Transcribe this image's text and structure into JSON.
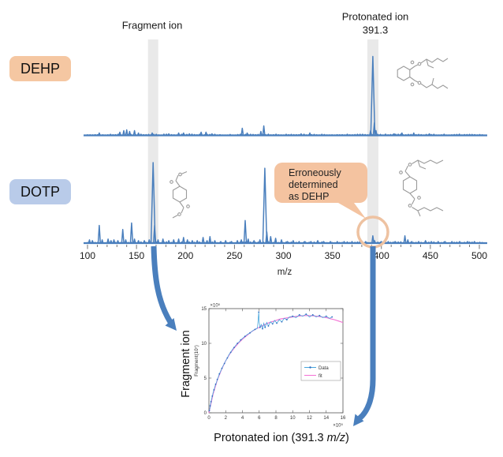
{
  "panel_labels": {
    "dehp": "DEHP",
    "dotp": "DOTP"
  },
  "annotations": {
    "fragment_ion_label": "Fragment ion",
    "protonated_ion_label": "Protonated ion",
    "protonated_ion_mz": "391.3",
    "callout_line1": "Erroneously",
    "callout_line2": "determined",
    "callout_line3": "as DEHP"
  },
  "axis": {
    "label": "m/z",
    "ticks": [
      100,
      150,
      200,
      250,
      300,
      350,
      400,
      450,
      500
    ]
  },
  "inset": {
    "ylabel_outer": "Fragment ion",
    "xlabel_prefix": "Protonated ion (391.3 ",
    "xlabel_italic": "m/z",
    "xlabel_suffix": ")"
  },
  "colors": {
    "spectrum_line": "#4a7fbd",
    "arrow": "#4a7fbd",
    "highlight_band": "#e9e9e9",
    "dehp_box_fill": "#f5c7a2",
    "dotp_box_fill": "#b9cbe9",
    "callout_fill": "#f4c3a0",
    "circle_stroke": "#eec2a1",
    "structure": "#9b9b9b",
    "axis_text": "#1a1a1a"
  },
  "chart_data": [
    {
      "type": "line",
      "name": "DEHP mass spectrum",
      "xlabel": "m/z",
      "xlim": [
        100,
        500
      ],
      "highlighted_mz": [
        167,
        391.3
      ],
      "peaks": [
        [
          112,
          3
        ],
        [
          133,
          4
        ],
        [
          137,
          6
        ],
        [
          140,
          7
        ],
        [
          143,
          5
        ],
        [
          148,
          6
        ],
        [
          152,
          3
        ],
        [
          166,
          3
        ],
        [
          183,
          2
        ],
        [
          193,
          3
        ],
        [
          198,
          3
        ],
        [
          204,
          2
        ],
        [
          216,
          4
        ],
        [
          221,
          4
        ],
        [
          227,
          2
        ],
        [
          258,
          9
        ],
        [
          263,
          3
        ],
        [
          277,
          5
        ],
        [
          280,
          12
        ],
        [
          318,
          2
        ],
        [
          327,
          3
        ],
        [
          389,
          6
        ],
        [
          391.3,
          100
        ],
        [
          392.8,
          16
        ],
        [
          394.5,
          6
        ],
        [
          413,
          2
        ],
        [
          421,
          3
        ],
        [
          433,
          3
        ],
        [
          449,
          2
        ]
      ]
    },
    {
      "type": "line",
      "name": "DOTP mass spectrum",
      "xlabel": "m/z",
      "xlim": [
        100,
        500
      ],
      "highlighted_mz": [
        167,
        391.3
      ],
      "peaks": [
        [
          102,
          4
        ],
        [
          105,
          3
        ],
        [
          112,
          22
        ],
        [
          115,
          4
        ],
        [
          121,
          5
        ],
        [
          124,
          3
        ],
        [
          127,
          4
        ],
        [
          131,
          3
        ],
        [
          136,
          17
        ],
        [
          139,
          4
        ],
        [
          145,
          25
        ],
        [
          148,
          5
        ],
        [
          152,
          3
        ],
        [
          158,
          3
        ],
        [
          163,
          4
        ],
        [
          167,
          100
        ],
        [
          168.5,
          22
        ],
        [
          172,
          4
        ],
        [
          177,
          5
        ],
        [
          183,
          3
        ],
        [
          188,
          4
        ],
        [
          193,
          5
        ],
        [
          198,
          7
        ],
        [
          202,
          4
        ],
        [
          207,
          3
        ],
        [
          212,
          3
        ],
        [
          218,
          7
        ],
        [
          222,
          3
        ],
        [
          225,
          8
        ],
        [
          230,
          3
        ],
        [
          236,
          2
        ],
        [
          241,
          3
        ],
        [
          247,
          2
        ],
        [
          253,
          3
        ],
        [
          257,
          4
        ],
        [
          261,
          28
        ],
        [
          264,
          5
        ],
        [
          270,
          3
        ],
        [
          276,
          4
        ],
        [
          281,
          93
        ],
        [
          283,
          14
        ],
        [
          287,
          8
        ],
        [
          292,
          6
        ],
        [
          298,
          4
        ],
        [
          304,
          2
        ],
        [
          310,
          3
        ],
        [
          316,
          2
        ],
        [
          322,
          2
        ],
        [
          328,
          2
        ],
        [
          335,
          3
        ],
        [
          341,
          2
        ],
        [
          348,
          2
        ],
        [
          355,
          2
        ],
        [
          362,
          2
        ],
        [
          370,
          2
        ],
        [
          378,
          2
        ],
        [
          384,
          2
        ],
        [
          391.3,
          9
        ],
        [
          393,
          3
        ],
        [
          400,
          2
        ],
        [
          407,
          2
        ],
        [
          414,
          2
        ],
        [
          424,
          9
        ],
        [
          427,
          4
        ],
        [
          431,
          2
        ],
        [
          438,
          2
        ],
        [
          445,
          3
        ],
        [
          451,
          2
        ],
        [
          458,
          2
        ],
        [
          465,
          2
        ],
        [
          472,
          2
        ],
        [
          480,
          2
        ],
        [
          488,
          2
        ],
        [
          495,
          2
        ]
      ]
    },
    {
      "type": "scatter",
      "name": "Fragment ion vs protonated ion intensity",
      "xlabel": "Protonated ion (391.3 m/z)",
      "ylabel": "Fragment(10⁷)",
      "xlim": [
        0,
        16
      ],
      "ylim": [
        0,
        15
      ],
      "x_ticks": [
        0,
        2,
        4,
        6,
        8,
        10,
        12,
        14,
        16
      ],
      "y_ticks": [
        0,
        5,
        10,
        15
      ],
      "x_multiplier": "×10⁵",
      "y_multiplier": "×10⁵",
      "legend_position": "right-middle",
      "series": [
        {
          "name": "Data",
          "color": "#45a6dc",
          "marker_color": "#2f6bbf",
          "points": [
            [
              0.05,
              0.3
            ],
            [
              0.1,
              0.6
            ],
            [
              0.15,
              1.0
            ],
            [
              0.2,
              1.3
            ],
            [
              0.25,
              1.6
            ],
            [
              0.3,
              1.9
            ],
            [
              0.4,
              2.4
            ],
            [
              0.5,
              2.9
            ],
            [
              0.6,
              3.3
            ],
            [
              0.7,
              3.7
            ],
            [
              0.8,
              4.1
            ],
            [
              0.9,
              4.4
            ],
            [
              1.0,
              4.8
            ],
            [
              1.1,
              5.1
            ],
            [
              1.25,
              5.6
            ],
            [
              1.4,
              6.0
            ],
            [
              1.55,
              6.4
            ],
            [
              1.7,
              6.8
            ],
            [
              1.85,
              7.1
            ],
            [
              2.0,
              7.5
            ],
            [
              2.2,
              7.9
            ],
            [
              2.4,
              8.4
            ],
            [
              2.6,
              8.7
            ],
            [
              2.8,
              9.1
            ],
            [
              3.0,
              9.4
            ],
            [
              3.2,
              9.7
            ],
            [
              3.4,
              10.0
            ],
            [
              3.6,
              10.2
            ],
            [
              3.8,
              10.5
            ],
            [
              4.0,
              10.7
            ],
            [
              4.3,
              11.0
            ],
            [
              4.6,
              11.3
            ],
            [
              4.9,
              11.5
            ],
            [
              5.2,
              11.8
            ],
            [
              5.5,
              12.0
            ],
            [
              5.8,
              12.2
            ],
            [
              5.95,
              14.5
            ],
            [
              6.0,
              13.0
            ],
            [
              6.1,
              12.3
            ],
            [
              6.25,
              12.7
            ],
            [
              6.4,
              12.1
            ],
            [
              6.55,
              12.9
            ],
            [
              6.7,
              12.3
            ],
            [
              6.9,
              13.0
            ],
            [
              7.1,
              12.5
            ],
            [
              7.35,
              13.1
            ],
            [
              7.6,
              12.8
            ],
            [
              7.85,
              13.3
            ],
            [
              8.1,
              12.9
            ],
            [
              8.4,
              13.4
            ],
            [
              8.7,
              13.1
            ],
            [
              9.0,
              13.6
            ],
            [
              9.3,
              13.4
            ],
            [
              9.6,
              13.8
            ],
            [
              10.0,
              13.9
            ],
            [
              10.4,
              13.7
            ],
            [
              10.8,
              14.1
            ],
            [
              11.2,
              13.9
            ],
            [
              11.6,
              14.2
            ],
            [
              12.0,
              13.8
            ],
            [
              12.4,
              14.1
            ],
            [
              12.8,
              13.8
            ],
            [
              13.2,
              14.0
            ],
            [
              13.6,
              13.7
            ],
            [
              14.0,
              13.9
            ],
            [
              14.4,
              13.6
            ],
            [
              14.7,
              13.8
            ]
          ]
        },
        {
          "name": "fit",
          "color": "#f46fd4",
          "points": [
            [
              0,
              0
            ],
            [
              0.5,
              2.7
            ],
            [
              1,
              4.7
            ],
            [
              1.5,
              6.2
            ],
            [
              2,
              7.5
            ],
            [
              2.5,
              8.5
            ],
            [
              3,
              9.3
            ],
            [
              3.5,
              10.0
            ],
            [
              4,
              10.6
            ],
            [
              4.5,
              11.1
            ],
            [
              5,
              11.6
            ],
            [
              5.5,
              12.0
            ],
            [
              6,
              12.3
            ],
            [
              6.5,
              12.6
            ],
            [
              7,
              12.9
            ],
            [
              7.5,
              13.1
            ],
            [
              8,
              13.3
            ],
            [
              8.5,
              13.5
            ],
            [
              9,
              13.6
            ],
            [
              9.5,
              13.7
            ],
            [
              10,
              13.8
            ],
            [
              10.5,
              13.9
            ],
            [
              11,
              13.95
            ],
            [
              11.5,
              14.0
            ],
            [
              12,
              14.0
            ],
            [
              12.5,
              13.95
            ],
            [
              13,
              13.9
            ],
            [
              13.5,
              13.8
            ],
            [
              14,
              13.7
            ],
            [
              14.5,
              13.55
            ],
            [
              15,
              13.4
            ],
            [
              15.5,
              13.2
            ],
            [
              16,
              13.0
            ]
          ]
        }
      ]
    }
  ]
}
